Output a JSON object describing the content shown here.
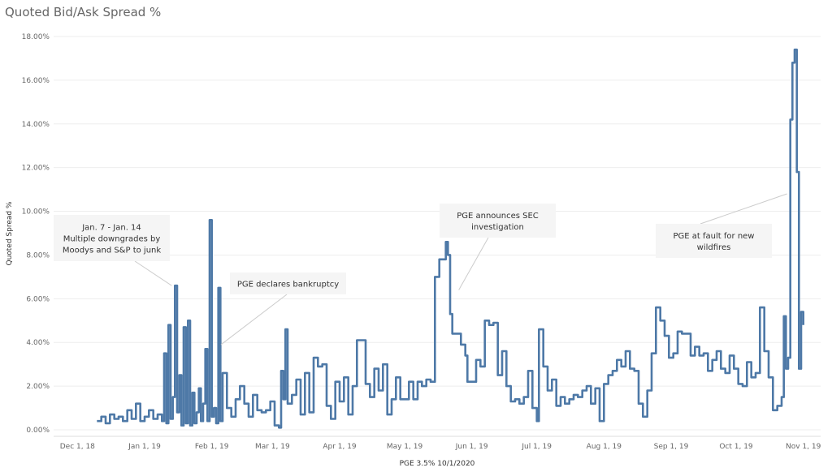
{
  "chart_data": {
    "type": "line",
    "title": "Quoted Bid/Ask Spread %",
    "xlabel": "PGE 3.5% 10/1/2020",
    "ylabel": "Quoted Spread %",
    "ylim": [
      0,
      18
    ],
    "y_ticks": [
      "0.00%",
      "2.00%",
      "4.00%",
      "6.00%",
      "8.00%",
      "10.00%",
      "12.00%",
      "14.00%",
      "16.00%",
      "18.00%"
    ],
    "y_tick_values": [
      0,
      2,
      4,
      6,
      8,
      10,
      12,
      14,
      16,
      18
    ],
    "x_ticks": [
      "Dec 1, 18",
      "Jan 1, 19",
      "Feb 1, 19",
      "Mar 1, 19",
      "Apr 1, 19",
      "May 1, 19",
      "Jun 1, 19",
      "Jul 1, 19",
      "Aug 1, 19",
      "Sep 1, 19",
      "Oct 1, 19",
      "Nov 1, 19"
    ],
    "x_tick_dates": [
      "2018-12-01",
      "2019-01-01",
      "2019-02-01",
      "2019-03-01",
      "2019-04-01",
      "2019-05-01",
      "2019-06-01",
      "2019-07-01",
      "2019-08-01",
      "2019-09-01",
      "2019-10-01",
      "2019-11-01"
    ],
    "grid": "horizontal",
    "line_color": "#4e79a7",
    "series": [
      {
        "name": "",
        "points": [
          [
            "2018-12-10",
            0.4
          ],
          [
            "2018-12-12",
            0.6
          ],
          [
            "2018-12-14",
            0.3
          ],
          [
            "2018-12-16",
            0.7
          ],
          [
            "2018-12-18",
            0.5
          ],
          [
            "2018-12-20",
            0.6
          ],
          [
            "2018-12-22",
            0.4
          ],
          [
            "2018-12-24",
            0.9
          ],
          [
            "2018-12-26",
            0.5
          ],
          [
            "2018-12-28",
            1.2
          ],
          [
            "2018-12-30",
            0.4
          ],
          [
            "2019-01-01",
            0.6
          ],
          [
            "2019-01-03",
            0.9
          ],
          [
            "2019-01-05",
            0.5
          ],
          [
            "2019-01-07",
            0.7
          ],
          [
            "2019-01-09",
            0.4
          ],
          [
            "2019-01-10",
            3.5
          ],
          [
            "2019-01-11",
            0.3
          ],
          [
            "2019-01-12",
            4.8
          ],
          [
            "2019-01-13",
            0.5
          ],
          [
            "2019-01-14",
            1.5
          ],
          [
            "2019-01-15",
            6.6
          ],
          [
            "2019-01-16",
            0.8
          ],
          [
            "2019-01-17",
            2.5
          ],
          [
            "2019-01-18",
            0.2
          ],
          [
            "2019-01-19",
            4.7
          ],
          [
            "2019-01-20",
            0.3
          ],
          [
            "2019-01-21",
            5.0
          ],
          [
            "2019-01-22",
            0.2
          ],
          [
            "2019-01-23",
            1.7
          ],
          [
            "2019-01-24",
            0.3
          ],
          [
            "2019-01-25",
            0.8
          ],
          [
            "2019-01-26",
            1.9
          ],
          [
            "2019-01-27",
            0.4
          ],
          [
            "2019-01-28",
            1.2
          ],
          [
            "2019-01-29",
            3.7
          ],
          [
            "2019-01-30",
            0.4
          ],
          [
            "2019-01-31",
            9.6
          ],
          [
            "2019-02-01",
            0.6
          ],
          [
            "2019-02-02",
            1.0
          ],
          [
            "2019-02-03",
            0.3
          ],
          [
            "2019-02-04",
            6.5
          ],
          [
            "2019-02-05",
            0.4
          ],
          [
            "2019-02-06",
            2.6
          ],
          [
            "2019-02-08",
            1.0
          ],
          [
            "2019-02-10",
            0.6
          ],
          [
            "2019-02-12",
            1.4
          ],
          [
            "2019-02-14",
            2.0
          ],
          [
            "2019-02-16",
            1.2
          ],
          [
            "2019-02-18",
            0.6
          ],
          [
            "2019-02-20",
            1.6
          ],
          [
            "2019-02-22",
            0.9
          ],
          [
            "2019-02-24",
            0.8
          ],
          [
            "2019-02-26",
            0.9
          ],
          [
            "2019-02-28",
            1.3
          ],
          [
            "2019-03-02",
            0.2
          ],
          [
            "2019-03-04",
            0.1
          ],
          [
            "2019-03-05",
            2.7
          ],
          [
            "2019-03-06",
            1.4
          ],
          [
            "2019-03-07",
            4.6
          ],
          [
            "2019-03-08",
            1.2
          ],
          [
            "2019-03-10",
            1.6
          ],
          [
            "2019-03-12",
            2.3
          ],
          [
            "2019-03-14",
            0.7
          ],
          [
            "2019-03-16",
            2.6
          ],
          [
            "2019-03-18",
            0.8
          ],
          [
            "2019-03-20",
            3.3
          ],
          [
            "2019-03-22",
            2.9
          ],
          [
            "2019-03-24",
            3.0
          ],
          [
            "2019-03-26",
            1.1
          ],
          [
            "2019-03-28",
            0.5
          ],
          [
            "2019-03-30",
            2.2
          ],
          [
            "2019-04-01",
            1.3
          ],
          [
            "2019-04-03",
            2.4
          ],
          [
            "2019-04-05",
            0.7
          ],
          [
            "2019-04-07",
            2.0
          ],
          [
            "2019-04-09",
            4.1
          ],
          [
            "2019-04-11",
            4.1
          ],
          [
            "2019-04-13",
            2.1
          ],
          [
            "2019-04-15",
            1.5
          ],
          [
            "2019-04-17",
            2.8
          ],
          [
            "2019-04-19",
            1.8
          ],
          [
            "2019-04-21",
            3.0
          ],
          [
            "2019-04-23",
            0.7
          ],
          [
            "2019-04-25",
            1.4
          ],
          [
            "2019-04-27",
            2.4
          ],
          [
            "2019-04-29",
            1.4
          ],
          [
            "2019-05-01",
            1.4
          ],
          [
            "2019-05-03",
            2.2
          ],
          [
            "2019-05-05",
            1.4
          ],
          [
            "2019-05-07",
            2.2
          ],
          [
            "2019-05-09",
            2.0
          ],
          [
            "2019-05-11",
            2.3
          ],
          [
            "2019-05-13",
            2.2
          ],
          [
            "2019-05-15",
            7.0
          ],
          [
            "2019-05-17",
            7.8
          ],
          [
            "2019-05-19",
            7.8
          ],
          [
            "2019-05-20",
            8.6
          ],
          [
            "2019-05-21",
            8.0
          ],
          [
            "2019-05-22",
            5.3
          ],
          [
            "2019-05-23",
            4.4
          ],
          [
            "2019-05-25",
            4.4
          ],
          [
            "2019-05-27",
            3.9
          ],
          [
            "2019-05-29",
            3.4
          ],
          [
            "2019-05-30",
            2.2
          ],
          [
            "2019-06-01",
            2.2
          ],
          [
            "2019-06-03",
            3.2
          ],
          [
            "2019-06-05",
            2.9
          ],
          [
            "2019-06-07",
            5.0
          ],
          [
            "2019-06-09",
            4.8
          ],
          [
            "2019-06-11",
            4.9
          ],
          [
            "2019-06-13",
            2.5
          ],
          [
            "2019-06-15",
            3.6
          ],
          [
            "2019-06-17",
            2.0
          ],
          [
            "2019-06-19",
            1.3
          ],
          [
            "2019-06-21",
            1.4
          ],
          [
            "2019-06-23",
            1.2
          ],
          [
            "2019-06-25",
            1.5
          ],
          [
            "2019-06-27",
            2.7
          ],
          [
            "2019-06-29",
            1.0
          ],
          [
            "2019-07-01",
            0.4
          ],
          [
            "2019-07-02",
            4.6
          ],
          [
            "2019-07-04",
            2.9
          ],
          [
            "2019-07-06",
            1.8
          ],
          [
            "2019-07-08",
            2.3
          ],
          [
            "2019-07-10",
            1.1
          ],
          [
            "2019-07-12",
            1.5
          ],
          [
            "2019-07-14",
            1.2
          ],
          [
            "2019-07-16",
            1.4
          ],
          [
            "2019-07-18",
            1.6
          ],
          [
            "2019-07-20",
            1.5
          ],
          [
            "2019-07-22",
            1.8
          ],
          [
            "2019-07-24",
            2.0
          ],
          [
            "2019-07-26",
            1.2
          ],
          [
            "2019-07-28",
            1.9
          ],
          [
            "2019-07-30",
            0.4
          ],
          [
            "2019-08-01",
            2.1
          ],
          [
            "2019-08-03",
            2.5
          ],
          [
            "2019-08-05",
            2.7
          ],
          [
            "2019-08-07",
            3.2
          ],
          [
            "2019-08-09",
            2.9
          ],
          [
            "2019-08-11",
            3.6
          ],
          [
            "2019-08-13",
            2.8
          ],
          [
            "2019-08-15",
            2.7
          ],
          [
            "2019-08-17",
            1.2
          ],
          [
            "2019-08-19",
            0.6
          ],
          [
            "2019-08-21",
            1.8
          ],
          [
            "2019-08-23",
            3.5
          ],
          [
            "2019-08-25",
            5.6
          ],
          [
            "2019-08-27",
            5.0
          ],
          [
            "2019-08-29",
            4.3
          ],
          [
            "2019-08-31",
            3.3
          ],
          [
            "2019-09-02",
            3.5
          ],
          [
            "2019-09-04",
            4.5
          ],
          [
            "2019-09-06",
            4.4
          ],
          [
            "2019-09-08",
            4.4
          ],
          [
            "2019-09-10",
            3.4
          ],
          [
            "2019-09-12",
            3.8
          ],
          [
            "2019-09-14",
            3.4
          ],
          [
            "2019-09-16",
            3.5
          ],
          [
            "2019-09-18",
            2.7
          ],
          [
            "2019-09-20",
            3.2
          ],
          [
            "2019-09-22",
            3.6
          ],
          [
            "2019-09-24",
            2.8
          ],
          [
            "2019-09-26",
            2.6
          ],
          [
            "2019-09-28",
            3.4
          ],
          [
            "2019-09-30",
            2.8
          ],
          [
            "2019-10-02",
            2.1
          ],
          [
            "2019-10-04",
            2.0
          ],
          [
            "2019-10-06",
            3.1
          ],
          [
            "2019-10-08",
            2.4
          ],
          [
            "2019-10-10",
            2.6
          ],
          [
            "2019-10-12",
            5.6
          ],
          [
            "2019-10-14",
            3.6
          ],
          [
            "2019-10-16",
            2.4
          ],
          [
            "2019-10-18",
            0.9
          ],
          [
            "2019-10-20",
            1.1
          ],
          [
            "2019-10-22",
            1.5
          ],
          [
            "2019-10-23",
            5.2
          ],
          [
            "2019-10-24",
            2.8
          ],
          [
            "2019-10-25",
            3.3
          ],
          [
            "2019-10-26",
            14.2
          ],
          [
            "2019-10-27",
            16.8
          ],
          [
            "2019-10-28",
            17.4
          ],
          [
            "2019-10-29",
            11.8
          ],
          [
            "2019-10-30",
            2.8
          ],
          [
            "2019-10-31",
            5.4
          ],
          [
            "2019-11-01",
            4.8
          ]
        ]
      }
    ],
    "annotations": [
      {
        "lines": [
          "Jan. 7 - Jan. 14",
          "Multiple downgrades by",
          "Moodys and S&P to junk"
        ],
        "date": "2019-01-15",
        "value": 6.6
      },
      {
        "lines": [
          "PGE declares bankruptcy"
        ],
        "date": "2019-02-03",
        "value": 4.0
      },
      {
        "lines": [
          "PGE announces SEC",
          "investigation"
        ],
        "date": "2019-05-23",
        "value": 6.4
      },
      {
        "lines": [
          "PGE at fault for new",
          "wildfires"
        ],
        "date": "2019-10-26",
        "value": 10.8
      }
    ]
  }
}
